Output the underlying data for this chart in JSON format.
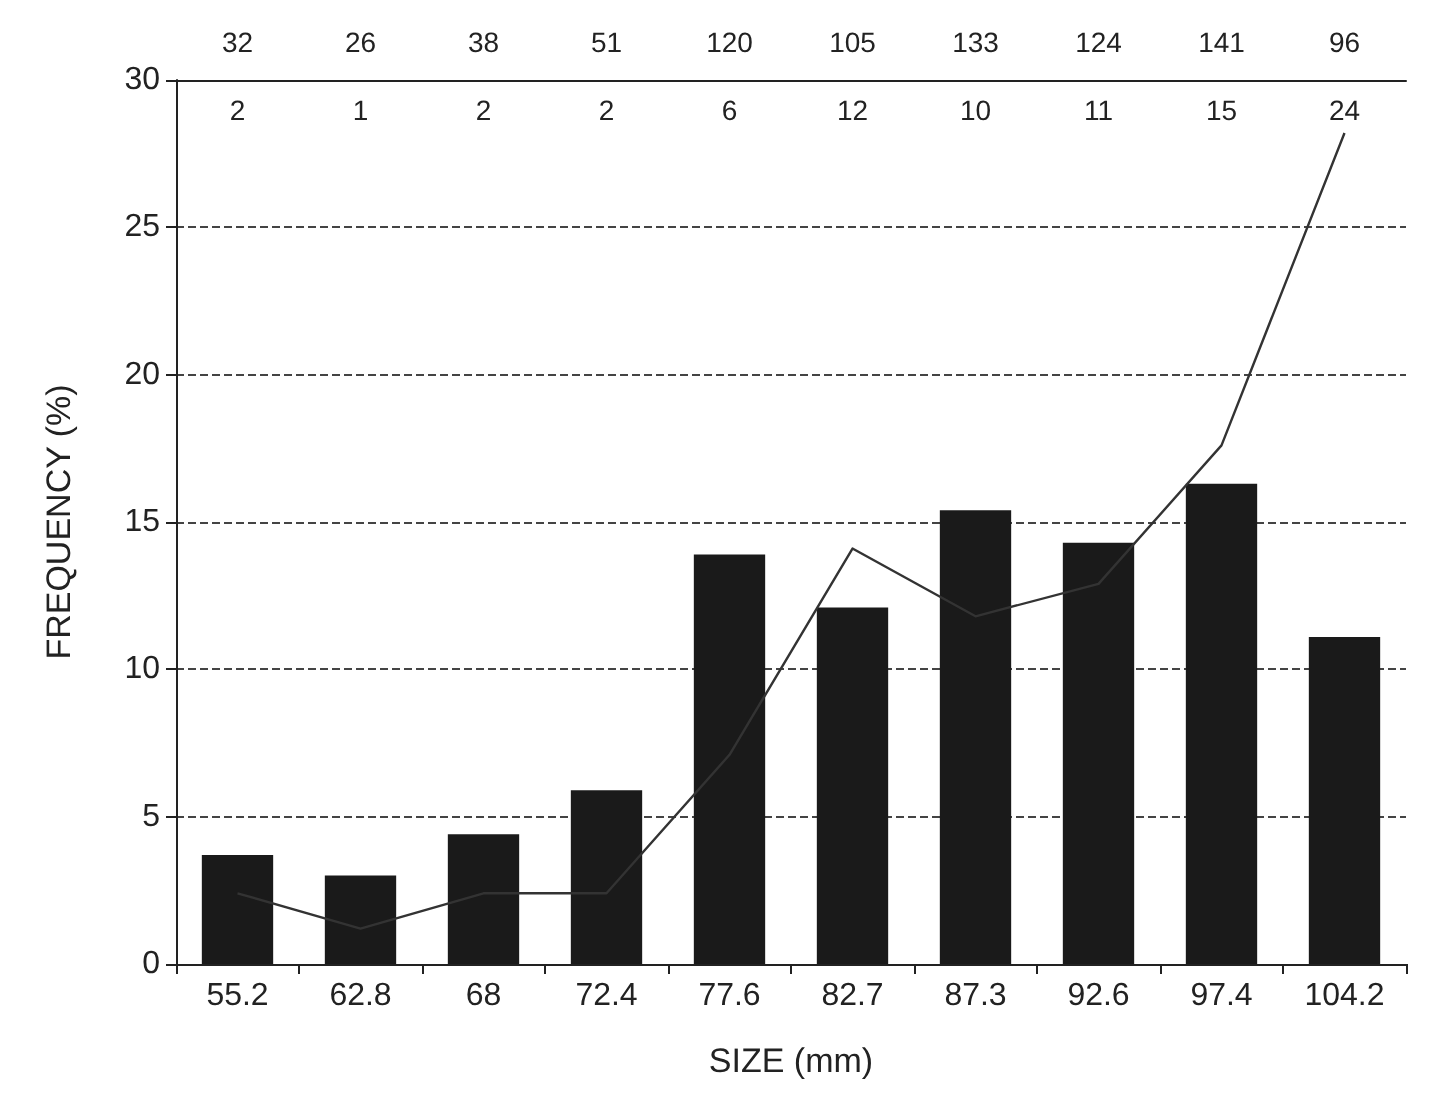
{
  "chart_data": {
    "type": "bar",
    "xlabel": "SIZE (mm)",
    "ylabel": "FREQUENCY (%)",
    "categories": [
      "55.2",
      "62.8",
      "68",
      "72.4",
      "77.6",
      "82.7",
      "87.3",
      "92.6",
      "97.4",
      "104.2"
    ],
    "series": [
      {
        "color": "#1a1a1a",
        "values": [
          3.7,
          3.0,
          4.4,
          5.9,
          13.9,
          12.1,
          15.4,
          14.3,
          16.3,
          11.1
        ]
      },
      {
        "type": "line",
        "color": "#333333",
        "values": [
          2.4,
          1.2,
          2.4,
          2.4,
          7.1,
          14.1,
          11.8,
          12.9,
          17.6,
          28.2
        ]
      }
    ],
    "annotations": [
      "32",
      "26",
      "38",
      "51",
      "120",
      "105",
      "133",
      "124",
      "141",
      "96",
      "2",
      "1",
      "2",
      "2",
      "6",
      "12",
      "10",
      "11",
      "15",
      "24"
    ],
    "ylim": [
      0,
      30
    ],
    "yticks": [
      0,
      5,
      10,
      15,
      20,
      25,
      30
    ],
    "grid": "y",
    "marker": "none",
    "line_style": "solid"
  }
}
